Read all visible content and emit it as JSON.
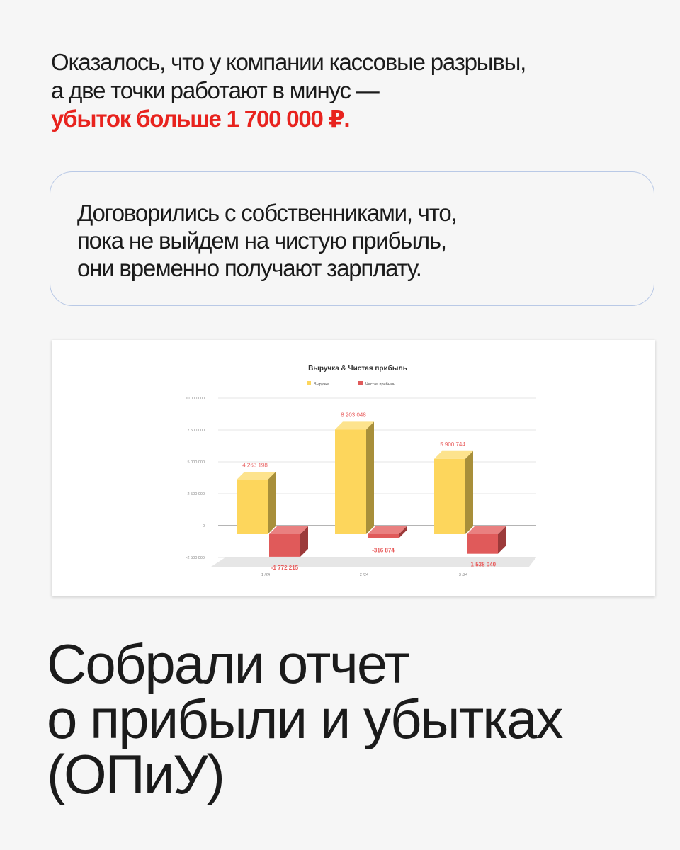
{
  "intro": {
    "line1": "Оказалось, что у компании кассовые разрывы,",
    "line2": "а две точки работают в минус —",
    "highlight": "убыток больше 1 700 000 ₽."
  },
  "note": {
    "lines": [
      "Договорились с собственниками, что,",
      "пока не выйдем на чистую прибыль,",
      "они временно получают зарплату."
    ]
  },
  "heading": {
    "lines": [
      "Собрали отчет",
      "о прибыли и убытках",
      "(ОПиУ)"
    ]
  },
  "colors": {
    "accent": "#e8231e",
    "revenue": "#fdd65c",
    "profit": "#e05a5a",
    "box_border": "#b9c9e6"
  },
  "chart_data": {
    "type": "bar",
    "title": "Выручка & Чистая прибыль",
    "categories": [
      "1 /24",
      "2 /24",
      "3 /24"
    ],
    "series": [
      {
        "name": "Выручка",
        "values": [
          4263198,
          8203048,
          5900744
        ],
        "labels": [
          "4 263 198",
          "8 203 048",
          "5 900 744"
        ]
      },
      {
        "name": "Чистая прибыль",
        "values": [
          -1772215,
          -316874,
          -1538040
        ],
        "labels": [
          "-1 772 215",
          "-316 874",
          "-1 538 040"
        ]
      }
    ],
    "yticks": [
      "10 000 000",
      "7 500 000",
      "5 000 000",
      "2 500 000",
      "0",
      "-2 500 000"
    ],
    "ytick_values": [
      10000000,
      7500000,
      5000000,
      2500000,
      0,
      -2500000
    ],
    "ylim": [
      -2500000,
      10000000
    ],
    "grid": true,
    "legend": "top",
    "style": "3d"
  }
}
